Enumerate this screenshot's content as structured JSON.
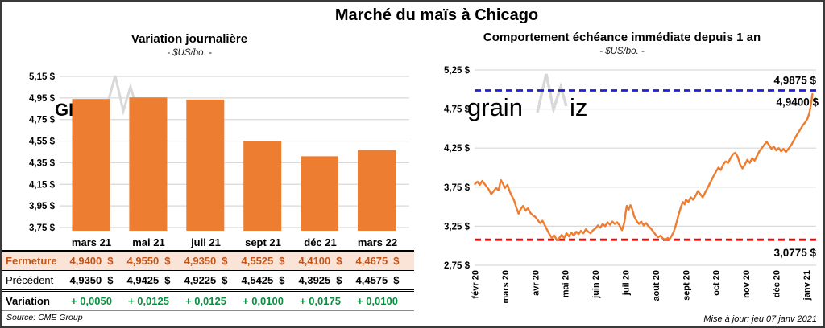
{
  "app": {
    "title": "Marché du maïs à Chicago"
  },
  "watermark": {
    "brand": "grainwiz",
    "brand_upper": "GRAINWIZ"
  },
  "footer": {
    "updated": "Mise à jour: jeu 07 janv 2021"
  },
  "table": {
    "columns": [
      "mars 21",
      "mai 21",
      "juil 21",
      "sept 21",
      "déc 21",
      "mars 22"
    ],
    "rows": [
      {
        "key": "fermeture",
        "label": "Fermeture",
        "unit": "$",
        "values": [
          "4,9400",
          "4,9550",
          "4,9350",
          "4,5525",
          "4,4100",
          "4,4675"
        ]
      },
      {
        "key": "precedent",
        "label": "Précédent",
        "unit": "$",
        "values": [
          "4,9350",
          "4,9425",
          "4,9225",
          "4,5425",
          "4,3925",
          "4,4575"
        ]
      },
      {
        "key": "variation",
        "label": "Variation",
        "unit": "",
        "values": [
          "+ 0,0050",
          "+ 0,0125",
          "+ 0,0125",
          "+ 0,0100",
          "+ 0,0175",
          "+ 0,0100"
        ]
      }
    ],
    "source": "Source: CME Group"
  },
  "chart_data": [
    {
      "id": "daily-variation",
      "type": "bar",
      "title": "Variation journalière",
      "subtitle": "- $US/bo. -",
      "categories": [
        "mars 21",
        "mai 21",
        "juil 21",
        "sept 21",
        "déc 21",
        "mars 22"
      ],
      "values": [
        4.94,
        4.955,
        4.935,
        4.5525,
        4.41,
        4.4675
      ],
      "ylim": [
        3.75,
        5.15
      ],
      "ytick_step": 0.2,
      "ytick_labels": [
        "5,15 $",
        "4,95 $",
        "4,75 $",
        "4,55 $",
        "4,35 $",
        "4,15 $",
        "3,95 $",
        "3,75 $"
      ],
      "bar_color": "#ED7D31",
      "grid": true,
      "legend": "none"
    },
    {
      "id": "front-month-one-year",
      "type": "line",
      "title": "Comportement échéance immédiate depuis 1 an",
      "subtitle": "- $US/bo. -",
      "x_tick_labels": [
        "févr 20",
        "mars 20",
        "avr 20",
        "mai 20",
        "juin 20",
        "juil 20",
        "août 20",
        "sept 20",
        "oct 20",
        "nov 20",
        "déc 20",
        "janv 21"
      ],
      "ylim": [
        2.75,
        5.25
      ],
      "ytick_step": 0.5,
      "ytick_labels": [
        "5,25 $",
        "4,75 $",
        "4,25 $",
        "3,75 $",
        "3,25 $",
        "2,75 $"
      ],
      "line_color": "#ED7D31",
      "grid": true,
      "legend": "none",
      "high_line": {
        "value": 4.9875,
        "label": "4,9875 $",
        "color": "#1F1FD6"
      },
      "low_line": {
        "value": 3.0775,
        "label": "3,0775 $",
        "color": "#FF0000"
      },
      "last_price": {
        "value": 4.94,
        "label": "4,9400 $",
        "color": "#000000"
      },
      "series": [
        {
          "name": "échéance immédiate",
          "points": [
            [
              0,
              3.79
            ],
            [
              0.08,
              3.82
            ],
            [
              0.16,
              3.78
            ],
            [
              0.24,
              3.83
            ],
            [
              0.3,
              3.8
            ],
            [
              0.38,
              3.76
            ],
            [
              0.46,
              3.72
            ],
            [
              0.54,
              3.66
            ],
            [
              0.62,
              3.7
            ],
            [
              0.7,
              3.74
            ],
            [
              0.78,
              3.71
            ],
            [
              0.86,
              3.84
            ],
            [
              0.92,
              3.8
            ],
            [
              1,
              3.74
            ],
            [
              1.08,
              3.78
            ],
            [
              1.15,
              3.7
            ],
            [
              1.22,
              3.64
            ],
            [
              1.3,
              3.58
            ],
            [
              1.38,
              3.48
            ],
            [
              1.45,
              3.41
            ],
            [
              1.52,
              3.47
            ],
            [
              1.6,
              3.51
            ],
            [
              1.68,
              3.45
            ],
            [
              1.76,
              3.48
            ],
            [
              1.84,
              3.42
            ],
            [
              1.92,
              3.39
            ],
            [
              2,
              3.37
            ],
            [
              2.08,
              3.33
            ],
            [
              2.16,
              3.29
            ],
            [
              2.24,
              3.32
            ],
            [
              2.32,
              3.26
            ],
            [
              2.4,
              3.2
            ],
            [
              2.48,
              3.14
            ],
            [
              2.56,
              3.1
            ],
            [
              2.64,
              3.13
            ],
            [
              2.72,
              3.07
            ],
            [
              2.8,
              3.1
            ],
            [
              2.88,
              3.14
            ],
            [
              2.96,
              3.1
            ],
            [
              3.04,
              3.16
            ],
            [
              3.12,
              3.12
            ],
            [
              3.2,
              3.17
            ],
            [
              3.28,
              3.13
            ],
            [
              3.36,
              3.18
            ],
            [
              3.44,
              3.15
            ],
            [
              3.52,
              3.19
            ],
            [
              3.6,
              3.16
            ],
            [
              3.68,
              3.21
            ],
            [
              3.76,
              3.18
            ],
            [
              3.84,
              3.16
            ],
            [
              3.92,
              3.2
            ],
            [
              4,
              3.22
            ],
            [
              4.08,
              3.26
            ],
            [
              4.16,
              3.23
            ],
            [
              4.24,
              3.28
            ],
            [
              4.32,
              3.25
            ],
            [
              4.4,
              3.3
            ],
            [
              4.48,
              3.27
            ],
            [
              4.56,
              3.31
            ],
            [
              4.64,
              3.28
            ],
            [
              4.72,
              3.3
            ],
            [
              4.8,
              3.26
            ],
            [
              4.88,
              3.2
            ],
            [
              4.96,
              3.3
            ],
            [
              5,
              3.42
            ],
            [
              5.04,
              3.51
            ],
            [
              5.1,
              3.46
            ],
            [
              5.16,
              3.52
            ],
            [
              5.22,
              3.47
            ],
            [
              5.28,
              3.38
            ],
            [
              5.36,
              3.32
            ],
            [
              5.44,
              3.28
            ],
            [
              5.52,
              3.31
            ],
            [
              5.6,
              3.26
            ],
            [
              5.68,
              3.29
            ],
            [
              5.76,
              3.25
            ],
            [
              5.84,
              3.22
            ],
            [
              5.92,
              3.18
            ],
            [
              6,
              3.14
            ],
            [
              6.08,
              3.11
            ],
            [
              6.16,
              3.13
            ],
            [
              6.24,
              3.09
            ],
            [
              6.32,
              3.08
            ],
            [
              6.4,
              3.1
            ],
            [
              6.45,
              3.08
            ],
            [
              6.52,
              3.12
            ],
            [
              6.6,
              3.18
            ],
            [
              6.68,
              3.28
            ],
            [
              6.76,
              3.4
            ],
            [
              6.84,
              3.5
            ],
            [
              6.9,
              3.56
            ],
            [
              6.96,
              3.53
            ],
            [
              7,
              3.59
            ],
            [
              7.08,
              3.56
            ],
            [
              7.16,
              3.62
            ],
            [
              7.24,
              3.59
            ],
            [
              7.32,
              3.64
            ],
            [
              7.4,
              3.7
            ],
            [
              7.48,
              3.66
            ],
            [
              7.56,
              3.62
            ],
            [
              7.64,
              3.68
            ],
            [
              7.72,
              3.74
            ],
            [
              7.8,
              3.8
            ],
            [
              7.9,
              3.88
            ],
            [
              8,
              3.95
            ],
            [
              8.08,
              4
            ],
            [
              8.16,
              3.97
            ],
            [
              8.24,
              4.04
            ],
            [
              8.32,
              4.08
            ],
            [
              8.4,
              4.06
            ],
            [
              8.48,
              4.12
            ],
            [
              8.56,
              4.17
            ],
            [
              8.64,
              4.19
            ],
            [
              8.72,
              4.14
            ],
            [
              8.8,
              4.04
            ],
            [
              8.88,
              3.99
            ],
            [
              8.96,
              4.04
            ],
            [
              9.04,
              4.1
            ],
            [
              9.12,
              4.06
            ],
            [
              9.2,
              4.12
            ],
            [
              9.28,
              4.09
            ],
            [
              9.36,
              4.15
            ],
            [
              9.44,
              4.21
            ],
            [
              9.52,
              4.25
            ],
            [
              9.6,
              4.29
            ],
            [
              9.68,
              4.33
            ],
            [
              9.76,
              4.29
            ],
            [
              9.84,
              4.24
            ],
            [
              9.92,
              4.27
            ],
            [
              10,
              4.22
            ],
            [
              10.08,
              4.25
            ],
            [
              10.16,
              4.21
            ],
            [
              10.24,
              4.24
            ],
            [
              10.32,
              4.2
            ],
            [
              10.4,
              4.24
            ],
            [
              10.48,
              4.28
            ],
            [
              10.56,
              4.33
            ],
            [
              10.64,
              4.39
            ],
            [
              10.72,
              4.44
            ],
            [
              10.8,
              4.49
            ],
            [
              10.88,
              4.54
            ],
            [
              10.96,
              4.58
            ],
            [
              11.04,
              4.63
            ],
            [
              11.1,
              4.7
            ],
            [
              11.14,
              4.78
            ],
            [
              11.17,
              4.86
            ],
            [
              11.2,
              4.94
            ]
          ]
        }
      ]
    }
  ]
}
